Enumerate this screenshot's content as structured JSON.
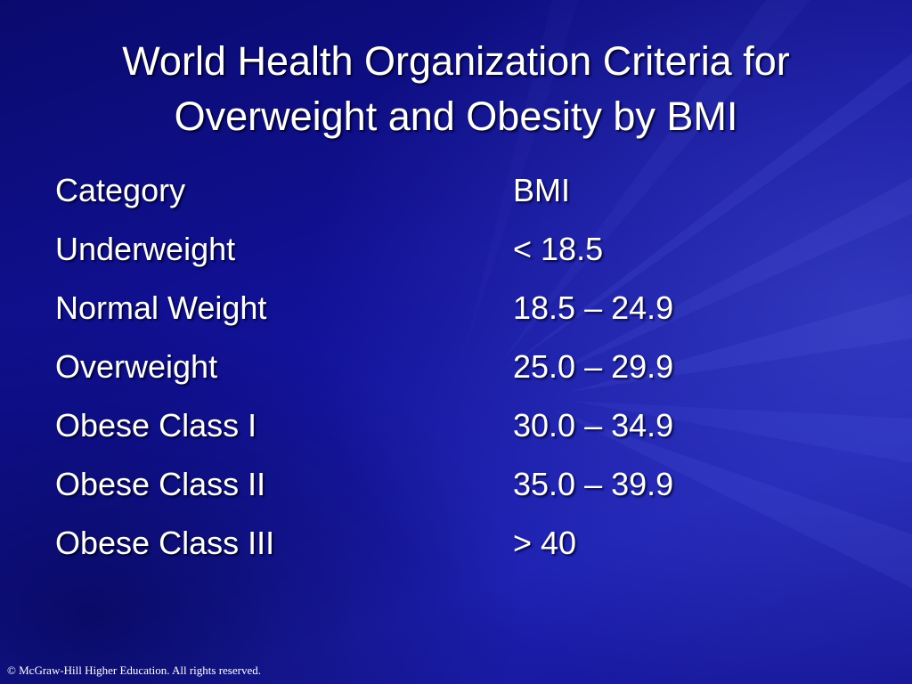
{
  "slide": {
    "title_line1": "World Health Organization Criteria for",
    "title_line2": "Overweight and Obesity by BMI",
    "colors": {
      "background_dark": "#0a0a6e",
      "background_light": "#1c1fb0",
      "text": "#ffffff"
    }
  },
  "table": {
    "headers": [
      "Category",
      "BMI"
    ],
    "rows": [
      [
        "Underweight",
        "< 18.5"
      ],
      [
        "Normal Weight",
        "18.5 – 24.9"
      ],
      [
        "Overweight",
        "25.0 – 29.9"
      ],
      [
        "Obese Class I",
        "30.0 – 34.9"
      ],
      [
        "Obese Class II",
        "35.0 – 39.9"
      ],
      [
        "Obese Class III",
        "> 40"
      ]
    ]
  },
  "footer": {
    "copyright": "© McGraw-Hill Higher Education. All rights reserved."
  }
}
